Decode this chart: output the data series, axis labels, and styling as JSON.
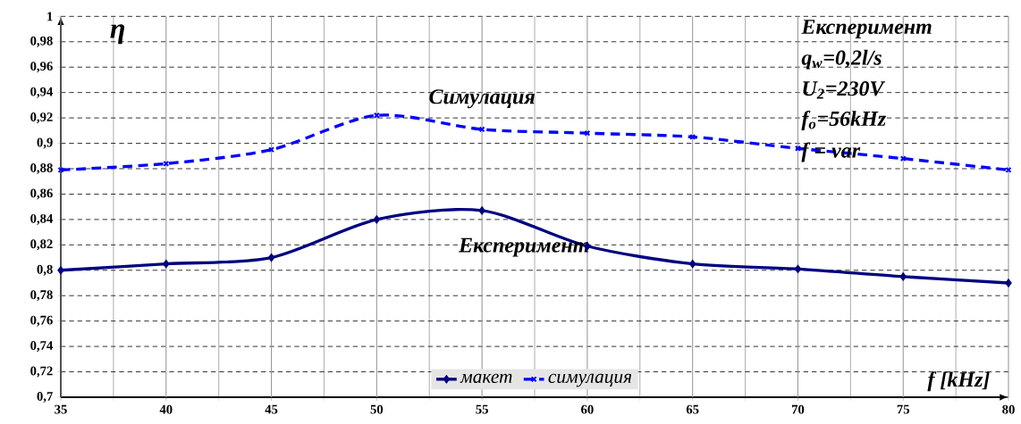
{
  "chart_data": {
    "type": "line",
    "ylabel": "η",
    "xlabel": "f [kHz]",
    "x": [
      35,
      40,
      45,
      50,
      55,
      60,
      65,
      70,
      75,
      80
    ],
    "series": [
      {
        "name": "макет",
        "color": "#000080",
        "marker": "diamond",
        "line_style": "solid",
        "values": [
          0.8,
          0.805,
          0.81,
          0.84,
          0.847,
          0.819,
          0.805,
          0.801,
          0.795,
          0.79
        ]
      },
      {
        "name": "симулация",
        "color": "#0000ff",
        "marker": "cross",
        "line_style": "dashed",
        "values": [
          0.879,
          0.884,
          0.895,
          0.922,
          0.911,
          0.908,
          0.905,
          0.896,
          0.888,
          0.879
        ]
      }
    ],
    "xlim": [
      35,
      80
    ],
    "xticks": [
      35,
      40,
      45,
      50,
      55,
      60,
      65,
      70,
      75,
      80
    ],
    "ylim": [
      0.7,
      1
    ],
    "yticks": [
      {
        "value": 0.7,
        "label": "0,7"
      },
      {
        "value": 0.72,
        "label": "0,72"
      },
      {
        "value": 0.74,
        "label": "0,74"
      },
      {
        "value": 0.76,
        "label": "0,76"
      },
      {
        "value": 0.78,
        "label": "0,78"
      },
      {
        "value": 0.8,
        "label": "0,8"
      },
      {
        "value": 0.82,
        "label": "0,82"
      },
      {
        "value": 0.84,
        "label": "0,84"
      },
      {
        "value": 0.86,
        "label": "0,86"
      },
      {
        "value": 0.88,
        "label": "0,88"
      },
      {
        "value": 0.9,
        "label": "0,9"
      },
      {
        "value": 0.92,
        "label": "0,92"
      },
      {
        "value": 0.94,
        "label": "0,94"
      },
      {
        "value": 0.96,
        "label": "0,96"
      },
      {
        "value": 0.98,
        "label": "0,98"
      },
      {
        "value": 1,
        "label": "1"
      }
    ],
    "grid": true,
    "legend": "bottom",
    "annotations": [
      "Симулация",
      "Експеримент",
      "Експеримент",
      "q$_{w}$=0,2l/s",
      "U$_{2}$=230V",
      "f$_{o}$=56kHz",
      "f = var"
    ]
  }
}
